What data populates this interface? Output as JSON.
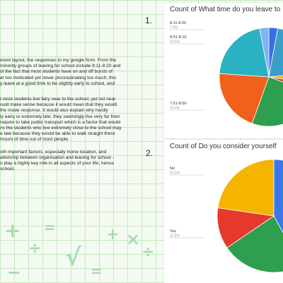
{
  "document": {
    "paragraphs": [
      [
        "erent layout, the responses to my google form. From the",
        "minority groups of leaving for school include 8:11-8:20 and",
        "of the fact that most students have on and off bursts of",
        "er too motivated yet never procrastinating too much; this",
        "y leave at a good time to be slightly early to school, and"
      ],
      [
        "t most students live fairy near to the school, yet not near",
        "ould make sense because it would mean that they would",
        "the mode response. It would also explain why hardly",
        "ly early or extremely late; they seemingly live very far from",
        "require to take public transport which is a factor that would",
        "ns the students who live extremely close to the school may",
        "e late because they would be able to walk straight there",
        "mount of time out of most people."
      ],
      [
        "oth important factors, especially home location, and",
        "ationship between organisation and leaving for school -",
        "o play a highly key role in all aspects of your life, hence",
        "school."
      ]
    ]
  },
  "markers": {
    "first": "1.",
    "second": "2."
  },
  "chart_data": [
    {
      "type": "pie",
      "title": "Count of What time do you leave to",
      "labels": [
        "8:11-8:20",
        "8:01-8:10",
        "7:51-8:00"
      ],
      "label_pcts": [
        "2.9%",
        "20.6%",
        "20.6%"
      ],
      "slices": [
        {
          "value": 2.9,
          "color": "#3b6fe0"
        },
        {
          "value": 20.6,
          "color": "#3b9ec9"
        },
        {
          "value": 4,
          "color": "#e6b800"
        },
        {
          "value": 3,
          "color": "#d33b2c"
        },
        {
          "value": 25,
          "color": "#2e9e4f"
        },
        {
          "value": 20.6,
          "color": "#f2601b"
        },
        {
          "value": 20.9,
          "color": "#2ab2c2"
        },
        {
          "value": 3,
          "color": "#7eb3f5"
        }
      ],
      "legend_labels": [
        "8:11-8:20",
        "8:01-8:10",
        "7:51-8:00"
      ]
    },
    {
      "type": "pie",
      "title": "Count of Do you consider yourself",
      "labels": [
        "No",
        "Yes"
      ],
      "label_pcts": [
        "23.5%",
        "11.8%"
      ],
      "slices": [
        {
          "value": 42,
          "color": "#3b78e7"
        },
        {
          "value": 23.5,
          "color": "#2e9e4f"
        },
        {
          "value": 11.8,
          "color": "#e5392b"
        },
        {
          "value": 22.7,
          "color": "#f4b400"
        }
      ]
    }
  ],
  "colors": {
    "background": "#f4fbf2",
    "grid": "#c9e6c4",
    "decoration": "#a9dcae"
  },
  "decorations": [
    "+",
    "÷",
    "=",
    "√",
    "+",
    "×",
    "÷",
    "−",
    "="
  ]
}
